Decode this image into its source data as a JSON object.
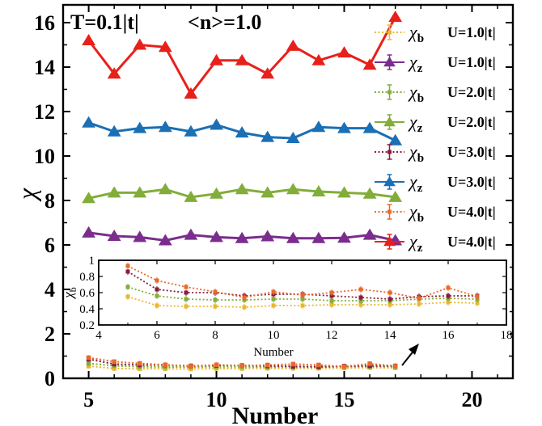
{
  "chart_data": [
    {
      "id": "main",
      "type": "line",
      "title": "",
      "xlabel": "Number",
      "ylabel": "χ",
      "xlim": [
        4.0,
        21.6
      ],
      "ylim": [
        0,
        16.8
      ],
      "xticks": [
        5,
        10,
        15,
        20
      ],
      "yticks": [
        0,
        2,
        4,
        6,
        8,
        10,
        12,
        14,
        16
      ],
      "annotations": [
        "T=0.1|t|",
        "<n>=1.0"
      ],
      "legend_position": "top-right",
      "x": [
        5,
        6,
        7,
        8,
        9,
        10,
        11,
        12,
        13,
        14,
        15,
        16,
        17
      ],
      "series": [
        {
          "name": "χ",
          "subscript": "b",
          "label": "U=1.0|t|",
          "color": "#e8b830",
          "style": "dotted",
          "values": [
            0.55,
            0.44,
            0.43,
            0.43,
            0.42,
            0.44,
            0.44,
            0.45,
            0.45,
            0.45,
            0.46,
            0.48,
            0.47
          ]
        },
        {
          "name": "χ",
          "subscript": "z",
          "label": "U=1.0|t|",
          "color": "#7b2d8e",
          "style": "solid",
          "values": [
            6.55,
            6.4,
            6.35,
            6.2,
            6.45,
            6.35,
            6.3,
            6.38,
            6.3,
            6.3,
            6.32,
            6.45,
            6.2
          ]
        },
        {
          "name": "χ",
          "subscript": "b",
          "label": "U=2.0|t|",
          "color": "#82ad3a",
          "style": "dotted",
          "values": [
            0.67,
            0.56,
            0.52,
            0.51,
            0.51,
            0.52,
            0.52,
            0.5,
            0.5,
            0.5,
            0.52,
            0.53,
            0.52
          ]
        },
        {
          "name": "χ",
          "subscript": "z",
          "label": "U=2.0|t|",
          "color": "#82ad3a",
          "style": "solid",
          "values": [
            8.1,
            8.35,
            8.35,
            8.5,
            8.15,
            8.3,
            8.5,
            8.35,
            8.5,
            8.4,
            8.35,
            8.3,
            8.15
          ]
        },
        {
          "name": "χ",
          "subscript": "b",
          "label": "U=3.0|t|",
          "color": "#8a1c3c",
          "style": "dotted",
          "values": [
            0.86,
            0.64,
            0.6,
            0.6,
            0.56,
            0.58,
            0.58,
            0.56,
            0.54,
            0.52,
            0.55,
            0.56,
            0.56
          ]
        },
        {
          "name": "χ",
          "subscript": "z",
          "label": "U=3.0|t|",
          "color": "#1a6fb5",
          "style": "solid",
          "values": [
            11.5,
            11.1,
            11.25,
            11.3,
            11.1,
            11.4,
            11.05,
            10.85,
            10.8,
            11.3,
            11.25,
            11.25,
            10.7
          ]
        },
        {
          "name": "χ",
          "subscript": "b",
          "label": "U=4.0|t|",
          "color": "#e86a2a",
          "style": "dotted",
          "values": [
            0.93,
            0.75,
            0.67,
            0.61,
            0.54,
            0.61,
            0.57,
            0.6,
            0.64,
            0.6,
            0.53,
            0.66,
            0.55
          ]
        },
        {
          "name": "χ",
          "subscript": "z",
          "label": "U=4.0|t|",
          "color": "#e8201a",
          "style": "solid",
          "values": [
            15.2,
            13.7,
            15.0,
            14.9,
            12.8,
            14.3,
            14.3,
            13.7,
            14.95,
            14.3,
            14.65,
            14.1,
            16.25
          ]
        }
      ]
    },
    {
      "id": "inset",
      "type": "line",
      "title": "",
      "xlabel": "Number",
      "ylabel": "χ",
      "ylabel_subscript": "b",
      "xlim": [
        4,
        18
      ],
      "ylim": [
        0.2,
        1.0
      ],
      "xticks": [
        4,
        6,
        8,
        10,
        12,
        14,
        16,
        18
      ],
      "yticks": [
        0.2,
        0.4,
        0.6,
        0.8,
        1.0
      ],
      "ytick_labels": [
        "0.2",
        "0.4",
        "0.6",
        "0.8",
        "1"
      ],
      "grid": false
    }
  ]
}
